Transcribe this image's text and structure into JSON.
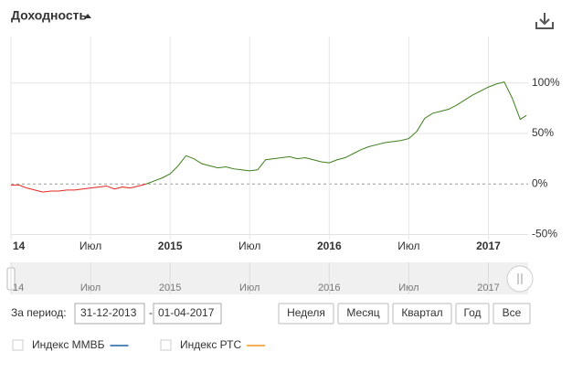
{
  "chart_data": {
    "type": "line",
    "title": "Доходность",
    "x": [
      2014.0,
      2014.05,
      2014.1,
      2014.15,
      2014.2,
      2014.25,
      2014.3,
      2014.35,
      2014.4,
      2014.45,
      2014.5,
      2014.55,
      2014.6,
      2014.65,
      2014.7,
      2014.75,
      2014.8,
      2014.85,
      2014.9,
      2014.95,
      2015.0,
      2015.05,
      2015.1,
      2015.15,
      2015.2,
      2015.25,
      2015.3,
      2015.35,
      2015.4,
      2015.45,
      2015.5,
      2015.55,
      2015.6,
      2015.65,
      2015.7,
      2015.75,
      2015.8,
      2015.85,
      2015.9,
      2015.95,
      2016.0,
      2016.05,
      2016.1,
      2016.15,
      2016.2,
      2016.25,
      2016.3,
      2016.35,
      2016.4,
      2016.45,
      2016.5,
      2016.55,
      2016.6,
      2016.65,
      2016.7,
      2016.75,
      2016.8,
      2016.85,
      2016.9,
      2016.95,
      2017.0,
      2017.05,
      2017.1,
      2017.15,
      2017.2,
      2017.24
    ],
    "values": [
      -1,
      -1,
      -4,
      -6,
      -8,
      -7,
      -7,
      -6,
      -6,
      -5,
      -4,
      -3,
      -2,
      -5,
      -3,
      -4,
      -2,
      0,
      3,
      6,
      10,
      18,
      28,
      25,
      20,
      18,
      16,
      17,
      15,
      14,
      13,
      14,
      24,
      25,
      26,
      27,
      25,
      26,
      24,
      22,
      21,
      24,
      26,
      30,
      34,
      37,
      39,
      41,
      42,
      43,
      45,
      52,
      65,
      70,
      72,
      74,
      78,
      83,
      88,
      92,
      96,
      99,
      101,
      85,
      64,
      68
    ],
    "color": "#3d7f1c",
    "negative_color": "#e3261e",
    "xlim": [
      2014,
      2017.25
    ],
    "ylim": [
      -55,
      146
    ],
    "xticks": [
      {
        "value": 2014,
        "label": "14"
      },
      {
        "value": 2014.5,
        "label": "Июл"
      },
      2015,
      {
        "value": 2015.5,
        "label": "Июл"
      },
      2016,
      {
        "value": 2016.5,
        "label": "Июл"
      },
      2017
    ],
    "yticks": [
      {
        "value": -50,
        "label": "-50%"
      },
      {
        "value": 0,
        "label": "0%"
      },
      {
        "value": 50,
        "label": "50%"
      },
      {
        "value": 100,
        "label": "100%"
      }
    ],
    "grid": true,
    "legend": [
      {
        "name": "Индекс ММВБ",
        "color": "#1f5fa8"
      },
      {
        "name": "Индекс РТС",
        "color": "#f0961e"
      }
    ]
  },
  "controls": {
    "period_label": "За период:",
    "from": "31-12-2013",
    "separator": "-",
    "to": "01-04-2017",
    "buttons": [
      "Неделя",
      "Месяц",
      "Квартал",
      "Год",
      "Все"
    ]
  }
}
